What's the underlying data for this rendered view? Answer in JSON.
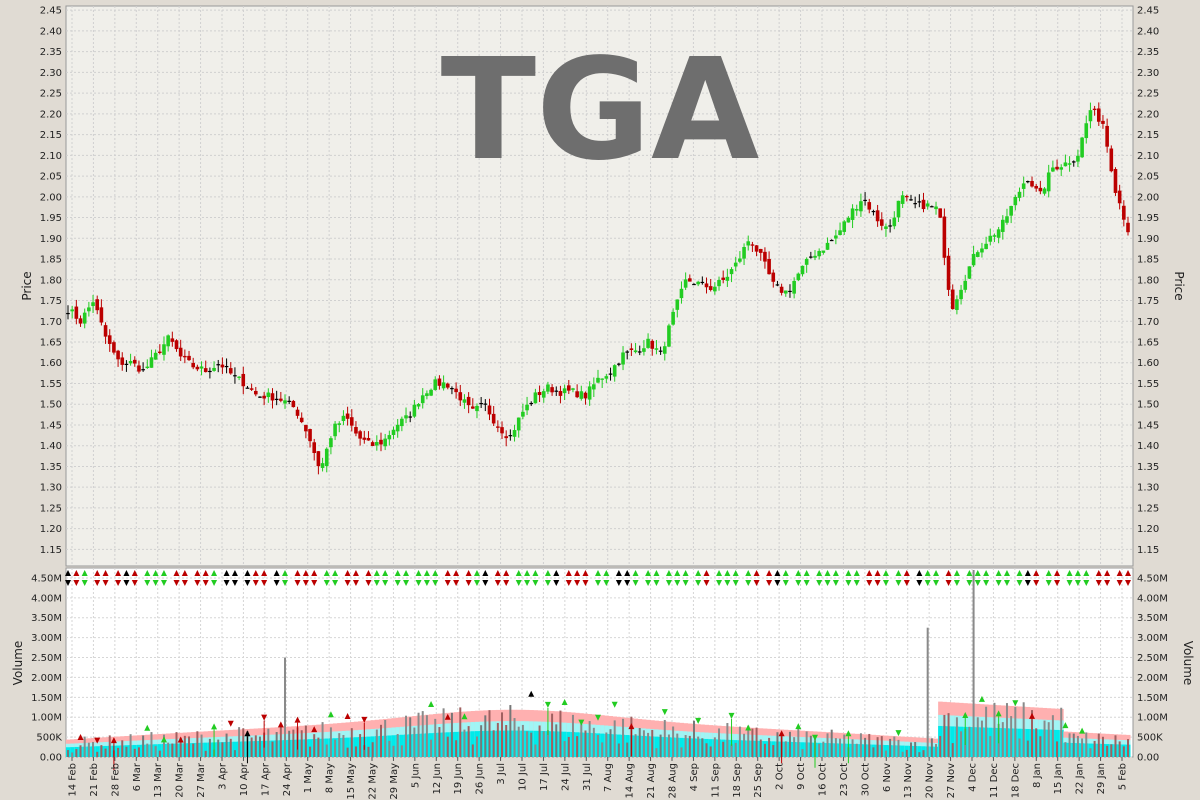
{
  "chart_data": [
    {
      "type": "candlestick",
      "title": "TGA",
      "ylabel": "Price",
      "ylim": [
        1.11,
        2.46
      ],
      "y_ticks": [
        "1.15",
        "1.20",
        "1.25",
        "1.30",
        "1.35",
        "1.40",
        "1.45",
        "1.50",
        "1.55",
        "1.60",
        "1.65",
        "1.70",
        "1.75",
        "1.80",
        "1.85",
        "1.90",
        "1.95",
        "2.00",
        "2.05",
        "2.10",
        "2.15",
        "2.20",
        "2.25",
        "2.30",
        "2.35",
        "2.40",
        "2.45"
      ],
      "grid": true,
      "colors": {
        "up": "#22cc22",
        "down": "#bb0000",
        "flat": "#000000"
      },
      "anchor_closes": [
        1.73,
        1.7,
        1.75,
        1.66,
        1.6,
        1.6,
        1.58,
        1.62,
        1.66,
        1.61,
        1.59,
        1.58,
        1.6,
        1.57,
        1.55,
        1.52,
        1.52,
        1.51,
        1.49,
        1.43,
        1.34,
        1.44,
        1.47,
        1.42,
        1.4,
        1.41,
        1.45,
        1.47,
        1.52,
        1.55,
        1.55,
        1.52,
        1.48,
        1.5,
        1.45,
        1.42,
        1.48,
        1.52,
        1.54,
        1.53,
        1.53,
        1.52,
        1.56,
        1.58,
        1.62,
        1.63,
        1.65,
        1.62,
        1.72,
        1.8,
        1.79,
        1.78,
        1.8,
        1.84,
        1.9,
        1.85,
        1.78,
        1.77,
        1.82,
        1.86,
        1.88,
        1.91,
        1.96,
        2.0,
        1.95,
        1.92,
        2.0,
        1.98,
        1.98,
        1.97,
        1.73,
        1.8,
        1.87,
        1.9,
        1.93,
        1.99,
        2.05,
        2.0,
        2.07,
        2.08,
        2.1,
        2.21,
        2.18,
        2.02,
        1.92
      ]
    },
    {
      "type": "bar",
      "ylabel": "Volume",
      "ylim": [
        0,
        4.75
      ],
      "y_ticks": [
        "0.00",
        "500K",
        "1.00M",
        "1.50M",
        "2.00M",
        "2.50M",
        "3.00M",
        "3.50M",
        "4.00M",
        "4.50M"
      ],
      "grid": true,
      "x_ticks": [
        "14 Feb",
        "21 Feb",
        "28 Feb",
        "6 Mar",
        "13 Mar",
        "20 Mar",
        "27 Mar",
        "3 Apr",
        "10 Apr",
        "17 Apr",
        "24 Apr",
        "1 May",
        "8 May",
        "15 May",
        "22 May",
        "29 May",
        "5 Jun",
        "12 Jun",
        "19 Jun",
        "26 Jun",
        "3 Jul",
        "10 Jul",
        "17 Jul",
        "24 Jul",
        "31 Jul",
        "7 Aug",
        "14 Aug",
        "21 Aug",
        "28 Aug",
        "4 Sep",
        "11 Sep",
        "18 Sep",
        "25 Sep",
        "2 Oct",
        "9 Oct",
        "16 Oct",
        "23 Oct",
        "30 Oct",
        "6 Nov",
        "13 Nov",
        "20 Nov",
        "27 Nov",
        "4 Dec",
        "11 Dec",
        "18 Dec",
        "8 Jan",
        "15 Jan",
        "22 Jan",
        "29 Jan",
        "5 Feb"
      ],
      "spike_values_millions": [
        {
          "x": "24 Apr",
          "value": 2.5
        },
        {
          "x": "20 Nov",
          "value": 3.25
        },
        {
          "x": "4 Dec",
          "value": 4.7
        }
      ],
      "band_colors": {
        "outer": "#ffb0b0",
        "middle": "#a0f5f5",
        "inner": "#00eaea"
      }
    }
  ]
}
